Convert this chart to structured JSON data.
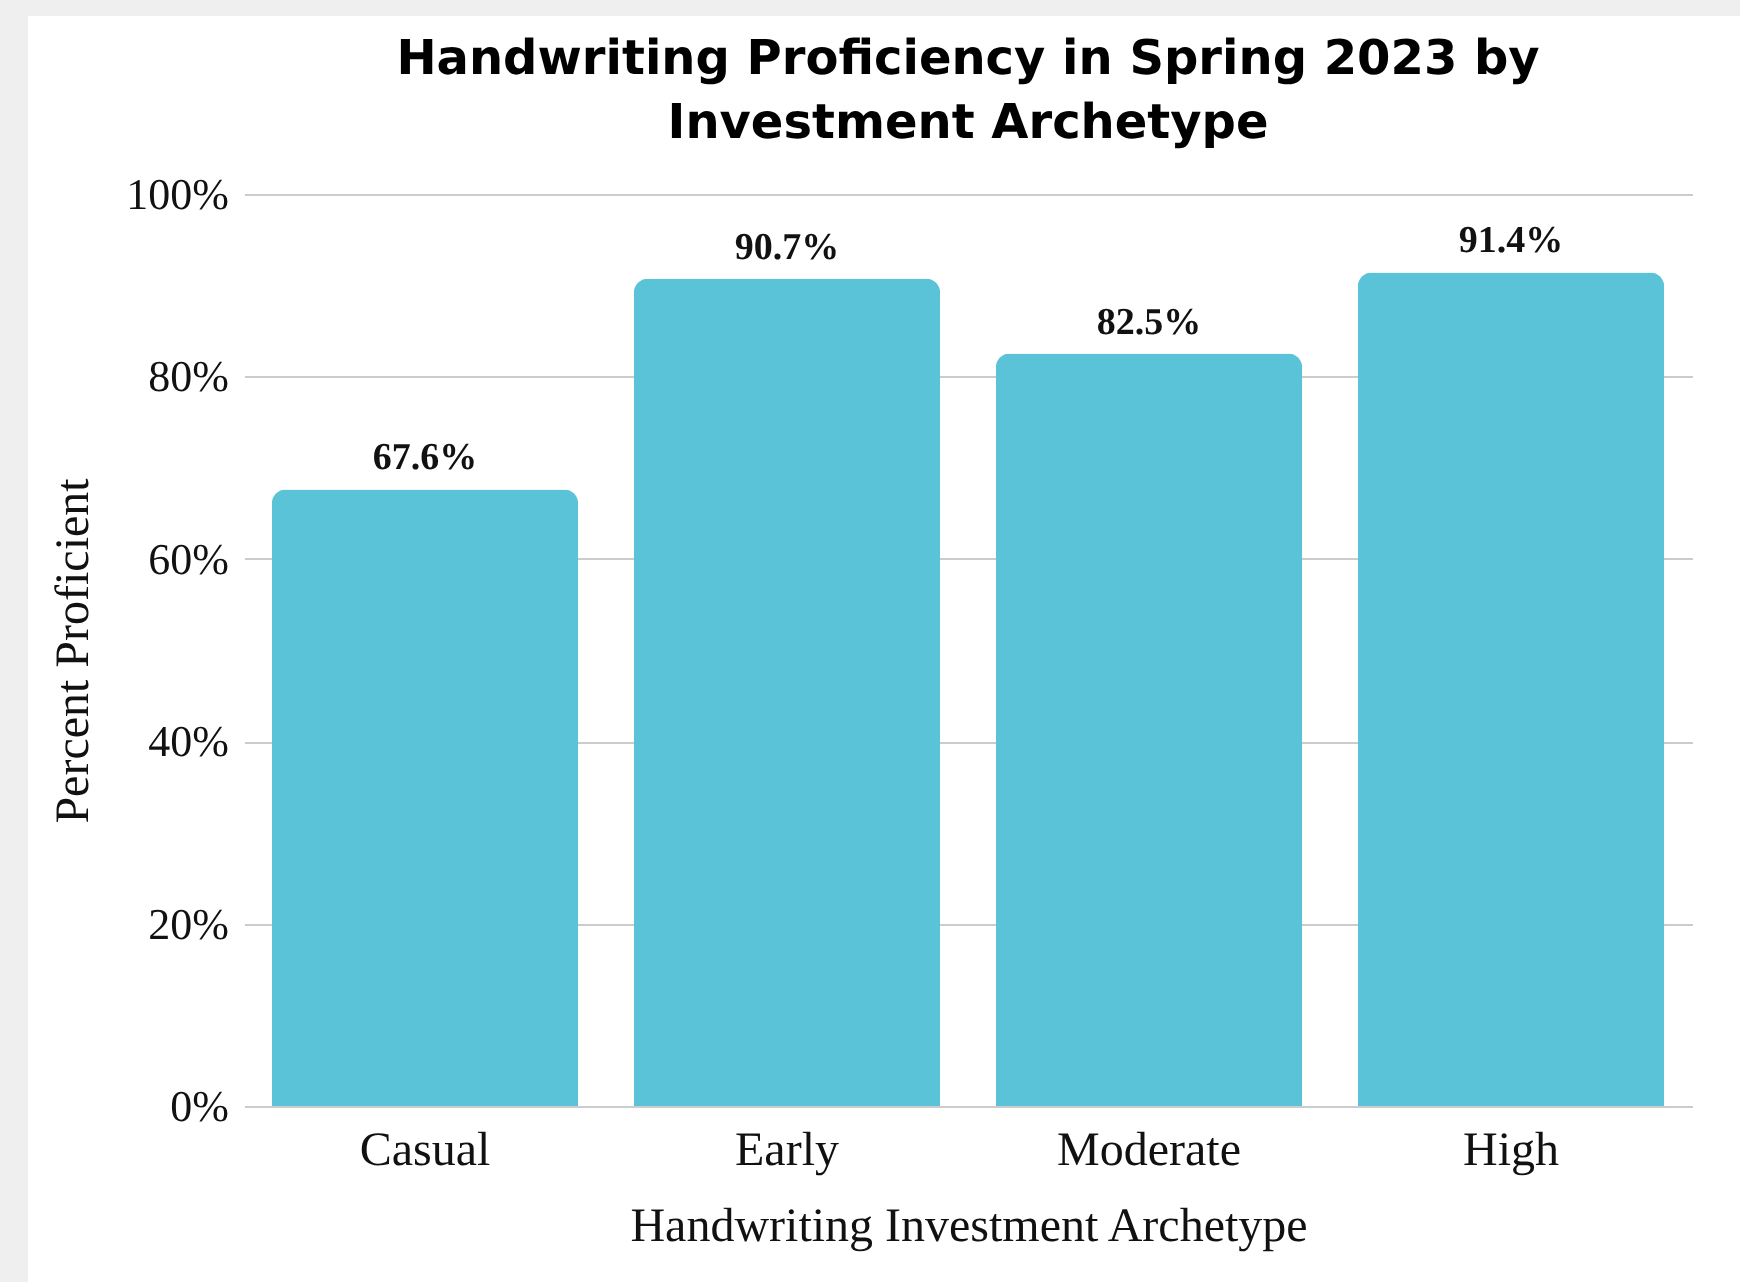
{
  "chart_data": {
    "type": "bar",
    "title": "Handwriting Proficiency in Spring 2023 by Investment Archetype",
    "xlabel": "Handwriting Investment Archetype",
    "ylabel": "Percent Proficient",
    "categories": [
      "Casual",
      "Early",
      "Moderate",
      "High"
    ],
    "values": [
      67.6,
      90.7,
      82.5,
      91.4
    ],
    "value_labels": [
      "67.6%",
      "90.7%",
      "82.5%",
      "91.4%"
    ],
    "color": "#5bc3d8",
    "ylim": [
      0,
      100
    ],
    "yticks": [
      {
        "value": 0,
        "label": "0%"
      },
      {
        "value": 20,
        "label": "20%"
      },
      {
        "value": 40,
        "label": "40%"
      },
      {
        "value": 60,
        "label": "60%"
      },
      {
        "value": 80,
        "label": "80%"
      },
      {
        "value": 100,
        "label": "100%"
      }
    ],
    "grid": "y"
  }
}
